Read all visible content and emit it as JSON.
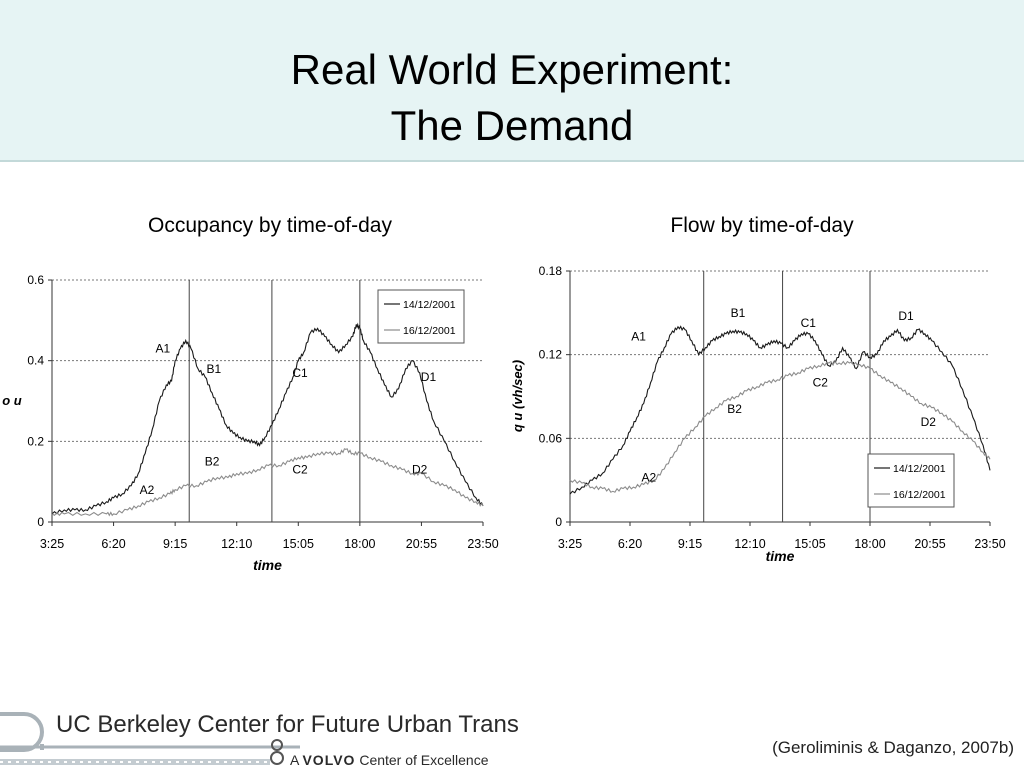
{
  "slide": {
    "title_line1": "Real World Experiment:",
    "title_line2": "The Demand",
    "citation": "(Geroliminis & Daganzo, 2007b)"
  },
  "footer": {
    "logo_line1": "UC Berkeley Center for Future Urban Transport",
    "logo_line2_prefix": "A",
    "logo_line2_brand": "VOLVO",
    "logo_line2_suffix": "Center of Excellence"
  },
  "colors": {
    "header_bg": "#e6f4f4",
    "series_dark": "#1a1a1a",
    "series_light": "#8c8c8c"
  },
  "chart_data": [
    {
      "type": "line",
      "caption": "Occupancy by time-of-day",
      "xlabel": "time",
      "ylabel": "o u",
      "x_ticks": [
        "3:25",
        "6:20",
        "9:15",
        "12:10",
        "15:05",
        "18:00",
        "20:55",
        "23:50"
      ],
      "x_range": [
        "3:25",
        "23:50"
      ],
      "ylim": [
        0,
        0.6
      ],
      "y_ticks": [
        "0",
        "0.2",
        "0.4",
        "0.6"
      ],
      "grid": "horizontal dashed",
      "legend_position": "top-right",
      "region_dividers": [
        "9:55",
        "13:50",
        "18:00"
      ],
      "annotations": [
        {
          "label": "A1",
          "time": "8:40",
          "y": 0.42
        },
        {
          "label": "B1",
          "time": "11:05",
          "y": 0.37
        },
        {
          "label": "C1",
          "time": "15:10",
          "y": 0.36
        },
        {
          "label": "D1",
          "time": "21:15",
          "y": 0.35
        },
        {
          "label": "A2",
          "time": "7:55",
          "y": 0.07
        },
        {
          "label": "B2",
          "time": "11:00",
          "y": 0.14
        },
        {
          "label": "C2",
          "time": "15:10",
          "y": 0.12
        },
        {
          "label": "D2",
          "time": "20:50",
          "y": 0.12
        }
      ],
      "series": [
        {
          "name": "14/12/2001",
          "x": [
            "3:25",
            "4:00",
            "4:30",
            "5:00",
            "5:30",
            "6:00",
            "6:20",
            "6:45",
            "7:10",
            "7:30",
            "7:50",
            "8:10",
            "8:30",
            "8:50",
            "9:05",
            "9:15",
            "9:30",
            "9:45",
            "10:00",
            "10:20",
            "10:40",
            "11:00",
            "11:20",
            "11:40",
            "12:00",
            "12:20",
            "12:40",
            "13:00",
            "13:15",
            "13:30",
            "13:50",
            "14:10",
            "14:30",
            "14:50",
            "15:05",
            "15:20",
            "15:40",
            "16:00",
            "16:20",
            "16:40",
            "17:00",
            "17:20",
            "17:40",
            "17:50",
            "18:00",
            "18:10",
            "18:30",
            "18:50",
            "19:10",
            "19:30",
            "19:50",
            "20:10",
            "20:30",
            "20:50",
            "21:10",
            "21:30",
            "22:00",
            "22:30",
            "23:00",
            "23:30",
            "23:50"
          ],
          "y": [
            0.02,
            0.03,
            0.03,
            0.03,
            0.04,
            0.05,
            0.06,
            0.07,
            0.09,
            0.12,
            0.17,
            0.23,
            0.3,
            0.34,
            0.35,
            0.4,
            0.43,
            0.45,
            0.43,
            0.38,
            0.36,
            0.32,
            0.28,
            0.24,
            0.22,
            0.21,
            0.2,
            0.2,
            0.19,
            0.21,
            0.24,
            0.28,
            0.32,
            0.36,
            0.4,
            0.42,
            0.47,
            0.48,
            0.46,
            0.44,
            0.42,
            0.44,
            0.46,
            0.49,
            0.48,
            0.45,
            0.42,
            0.38,
            0.34,
            0.31,
            0.33,
            0.38,
            0.4,
            0.37,
            0.3,
            0.25,
            0.2,
            0.15,
            0.1,
            0.06,
            0.04
          ]
        },
        {
          "name": "16/12/2001",
          "x": [
            "3:25",
            "4:00",
            "5:00",
            "6:00",
            "6:20",
            "7:00",
            "7:30",
            "8:00",
            "8:30",
            "9:00",
            "9:15",
            "9:45",
            "10:15",
            "10:45",
            "11:15",
            "11:45",
            "12:10",
            "12:40",
            "13:10",
            "13:40",
            "14:10",
            "14:40",
            "15:05",
            "15:30",
            "16:00",
            "16:30",
            "17:00",
            "17:20",
            "17:40",
            "18:00",
            "18:30",
            "19:00",
            "19:30",
            "20:00",
            "20:30",
            "20:55",
            "21:30",
            "22:00",
            "22:30",
            "23:00",
            "23:30",
            "23:50"
          ],
          "y": [
            0.02,
            0.02,
            0.02,
            0.02,
            0.02,
            0.03,
            0.04,
            0.05,
            0.06,
            0.07,
            0.08,
            0.09,
            0.09,
            0.1,
            0.11,
            0.11,
            0.12,
            0.12,
            0.13,
            0.14,
            0.14,
            0.15,
            0.16,
            0.16,
            0.17,
            0.17,
            0.17,
            0.18,
            0.17,
            0.17,
            0.16,
            0.15,
            0.14,
            0.13,
            0.12,
            0.12,
            0.1,
            0.09,
            0.08,
            0.06,
            0.05,
            0.04
          ]
        }
      ]
    },
    {
      "type": "line",
      "caption": "Flow by time-of-day",
      "xlabel": "time",
      "ylabel": "q u (vh/sec)",
      "x_ticks": [
        "3:25",
        "6:20",
        "9:15",
        "12:10",
        "15:05",
        "18:00",
        "20:55",
        "23:50"
      ],
      "x_range": [
        "3:25",
        "23:50"
      ],
      "ylim": [
        0,
        0.18
      ],
      "y_ticks": [
        "0",
        "0.06",
        "0.12",
        "0.18"
      ],
      "grid": "horizontal dashed",
      "legend_position": "bottom-right",
      "region_dividers": [
        "9:55",
        "13:45",
        "18:00"
      ],
      "annotations": [
        {
          "label": "A1",
          "time": "6:45",
          "y": 0.13
        },
        {
          "label": "B1",
          "time": "11:35",
          "y": 0.147
        },
        {
          "label": "C1",
          "time": "15:00",
          "y": 0.14
        },
        {
          "label": "D1",
          "time": "19:45",
          "y": 0.145
        },
        {
          "label": "A2",
          "time": "7:15",
          "y": 0.029
        },
        {
          "label": "B2",
          "time": "11:25",
          "y": 0.078
        },
        {
          "label": "C2",
          "time": "15:35",
          "y": 0.097
        },
        {
          "label": "D2",
          "time": "20:50",
          "y": 0.069
        }
      ],
      "series": [
        {
          "name": "14/12/2001",
          "x": [
            "3:25",
            "4:00",
            "4:30",
            "5:00",
            "5:30",
            "6:00",
            "6:20",
            "6:40",
            "7:00",
            "7:20",
            "7:40",
            "8:00",
            "8:20",
            "8:40",
            "9:00",
            "9:20",
            "9:40",
            "10:00",
            "10:20",
            "10:40",
            "11:00",
            "11:20",
            "11:40",
            "12:00",
            "12:20",
            "12:40",
            "13:00",
            "13:20",
            "13:40",
            "14:00",
            "14:20",
            "14:40",
            "15:00",
            "15:20",
            "15:40",
            "16:00",
            "16:20",
            "16:40",
            "17:00",
            "17:20",
            "17:40",
            "18:00",
            "18:20",
            "18:40",
            "19:00",
            "19:20",
            "19:40",
            "20:00",
            "20:20",
            "20:40",
            "21:00",
            "21:30",
            "22:00",
            "22:30",
            "23:00",
            "23:30",
            "23:50"
          ],
          "y": [
            0.02,
            0.025,
            0.03,
            0.035,
            0.045,
            0.055,
            0.065,
            0.075,
            0.085,
            0.1,
            0.115,
            0.125,
            0.135,
            0.14,
            0.138,
            0.13,
            0.12,
            0.125,
            0.13,
            0.133,
            0.135,
            0.137,
            0.136,
            0.135,
            0.13,
            0.125,
            0.127,
            0.13,
            0.128,
            0.125,
            0.13,
            0.135,
            0.135,
            0.13,
            0.12,
            0.112,
            0.115,
            0.125,
            0.118,
            0.11,
            0.122,
            0.118,
            0.12,
            0.13,
            0.133,
            0.138,
            0.13,
            0.132,
            0.138,
            0.135,
            0.13,
            0.122,
            0.112,
            0.095,
            0.075,
            0.055,
            0.037
          ]
        },
        {
          "name": "16/12/2001",
          "x": [
            "3:25",
            "4:00",
            "4:30",
            "5:00",
            "5:30",
            "6:00",
            "6:30",
            "7:00",
            "7:30",
            "8:00",
            "8:30",
            "9:00",
            "9:30",
            "10:00",
            "10:30",
            "11:00",
            "11:30",
            "12:00",
            "12:30",
            "13:00",
            "13:30",
            "14:00",
            "14:30",
            "15:00",
            "15:30",
            "16:00",
            "16:30",
            "17:00",
            "17:30",
            "18:00",
            "18:30",
            "19:00",
            "19:30",
            "20:00",
            "20:30",
            "21:00",
            "21:30",
            "22:00",
            "22:30",
            "23:00",
            "23:30",
            "23:50"
          ],
          "y": [
            0.03,
            0.028,
            0.025,
            0.024,
            0.022,
            0.024,
            0.025,
            0.027,
            0.03,
            0.038,
            0.05,
            0.06,
            0.068,
            0.076,
            0.082,
            0.087,
            0.09,
            0.094,
            0.097,
            0.1,
            0.102,
            0.105,
            0.107,
            0.11,
            0.112,
            0.114,
            0.114,
            0.114,
            0.113,
            0.11,
            0.105,
            0.1,
            0.096,
            0.09,
            0.085,
            0.082,
            0.078,
            0.072,
            0.065,
            0.058,
            0.05,
            0.045
          ]
        }
      ]
    }
  ]
}
